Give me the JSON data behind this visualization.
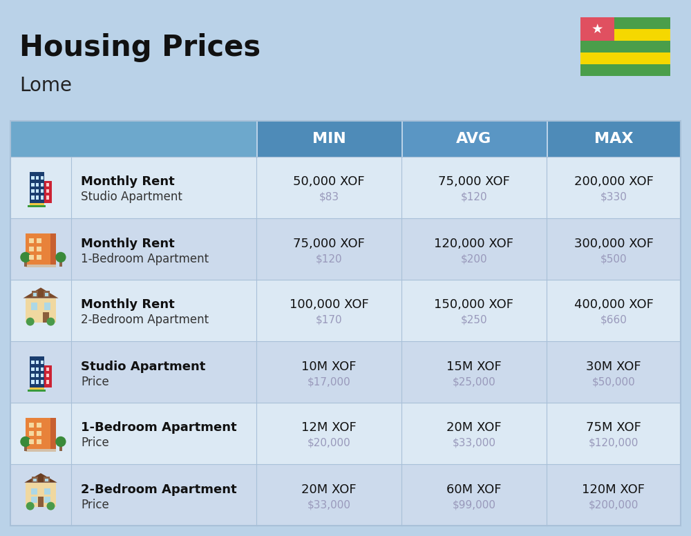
{
  "title": "Housing Prices",
  "subtitle": "Lome",
  "bg_color": "#bad2e8",
  "header_bg_left": "#6da0c8",
  "header_bg_min": "#5590c0",
  "header_bg_avg": "#5590c0",
  "header_bg_max": "#5590c0",
  "header_text_color": "#ffffff",
  "row_bg_colors": [
    "#dce9f4",
    "#ccdaec"
  ],
  "separator_color": "#a8c0d8",
  "col_headers": [
    "MIN",
    "AVG",
    "MAX"
  ],
  "rows": [
    {
      "icon_type": "blue_tower",
      "label_bold": "Monthly Rent",
      "label_sub": "Studio Apartment",
      "min_main": "50,000 XOF",
      "min_sub": "$83",
      "avg_main": "75,000 XOF",
      "avg_sub": "$120",
      "max_main": "200,000 XOF",
      "max_sub": "$330"
    },
    {
      "icon_type": "orange_apt",
      "label_bold": "Monthly Rent",
      "label_sub": "1-Bedroom Apartment",
      "min_main": "75,000 XOF",
      "min_sub": "$120",
      "avg_main": "120,000 XOF",
      "avg_sub": "$200",
      "max_main": "300,000 XOF",
      "max_sub": "$500"
    },
    {
      "icon_type": "tan_house",
      "label_bold": "Monthly Rent",
      "label_sub": "2-Bedroom Apartment",
      "min_main": "100,000 XOF",
      "min_sub": "$170",
      "avg_main": "150,000 XOF",
      "avg_sub": "$250",
      "max_main": "400,000 XOF",
      "max_sub": "$660"
    },
    {
      "icon_type": "blue_tower",
      "label_bold": "Studio Apartment",
      "label_sub": "Price",
      "min_main": "10M XOF",
      "min_sub": "$17,000",
      "avg_main": "15M XOF",
      "avg_sub": "$25,000",
      "max_main": "30M XOF",
      "max_sub": "$50,000"
    },
    {
      "icon_type": "orange_apt",
      "label_bold": "1-Bedroom Apartment",
      "label_sub": "Price",
      "min_main": "12M XOF",
      "min_sub": "$20,000",
      "avg_main": "20M XOF",
      "avg_sub": "$33,000",
      "max_main": "75M XOF",
      "max_sub": "$120,000"
    },
    {
      "icon_type": "tan_house2",
      "label_bold": "2-Bedroom Apartment",
      "label_sub": "Price",
      "min_main": "20M XOF",
      "min_sub": "$33,000",
      "avg_main": "60M XOF",
      "avg_sub": "$99,000",
      "max_main": "120M XOF",
      "max_sub": "$200,000"
    }
  ],
  "flag": {
    "stripes": [
      "#4a9e4a",
      "#f5d800",
      "#4a9e4a",
      "#f5d800",
      "#4a9e4a"
    ],
    "red": "#e05060",
    "white": "#ffffff"
  }
}
